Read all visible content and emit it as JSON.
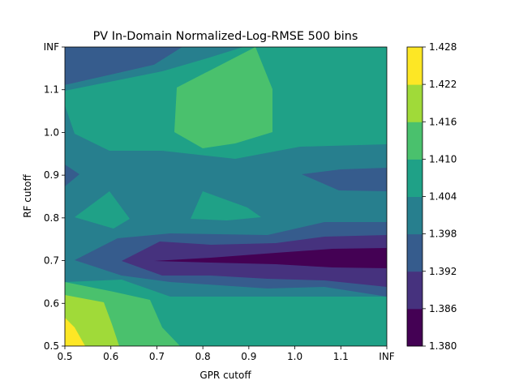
{
  "chart_data": {
    "type": "contour",
    "title": "PV In-Domain Normalized-Log-RMSE 500 bins",
    "xlabel": "GPR cutoff",
    "ylabel": "RF cutoff",
    "x_ticks": [
      "0.5",
      "0.6",
      "0.7",
      "0.8",
      "0.9",
      "1.0",
      "1.1",
      "INF"
    ],
    "y_ticks": [
      "0.5",
      "0.6",
      "0.7",
      "0.8",
      "0.9",
      "1.0",
      "1.1",
      "INF"
    ],
    "colorbar_ticks": [
      "1.380",
      "1.386",
      "1.392",
      "1.398",
      "1.404",
      "1.410",
      "1.416",
      "1.422",
      "1.428"
    ],
    "levels": [
      1.38,
      1.386,
      1.392,
      1.398,
      1.404,
      1.41,
      1.416,
      1.422,
      1.428
    ],
    "level_colors": [
      "#440154",
      "#46327e",
      "#365c8d",
      "#277f8e",
      "#1fa187",
      "#4ac16d",
      "#a0da39",
      "#fde725"
    ],
    "grid": false,
    "legend": "colorbar-right"
  }
}
